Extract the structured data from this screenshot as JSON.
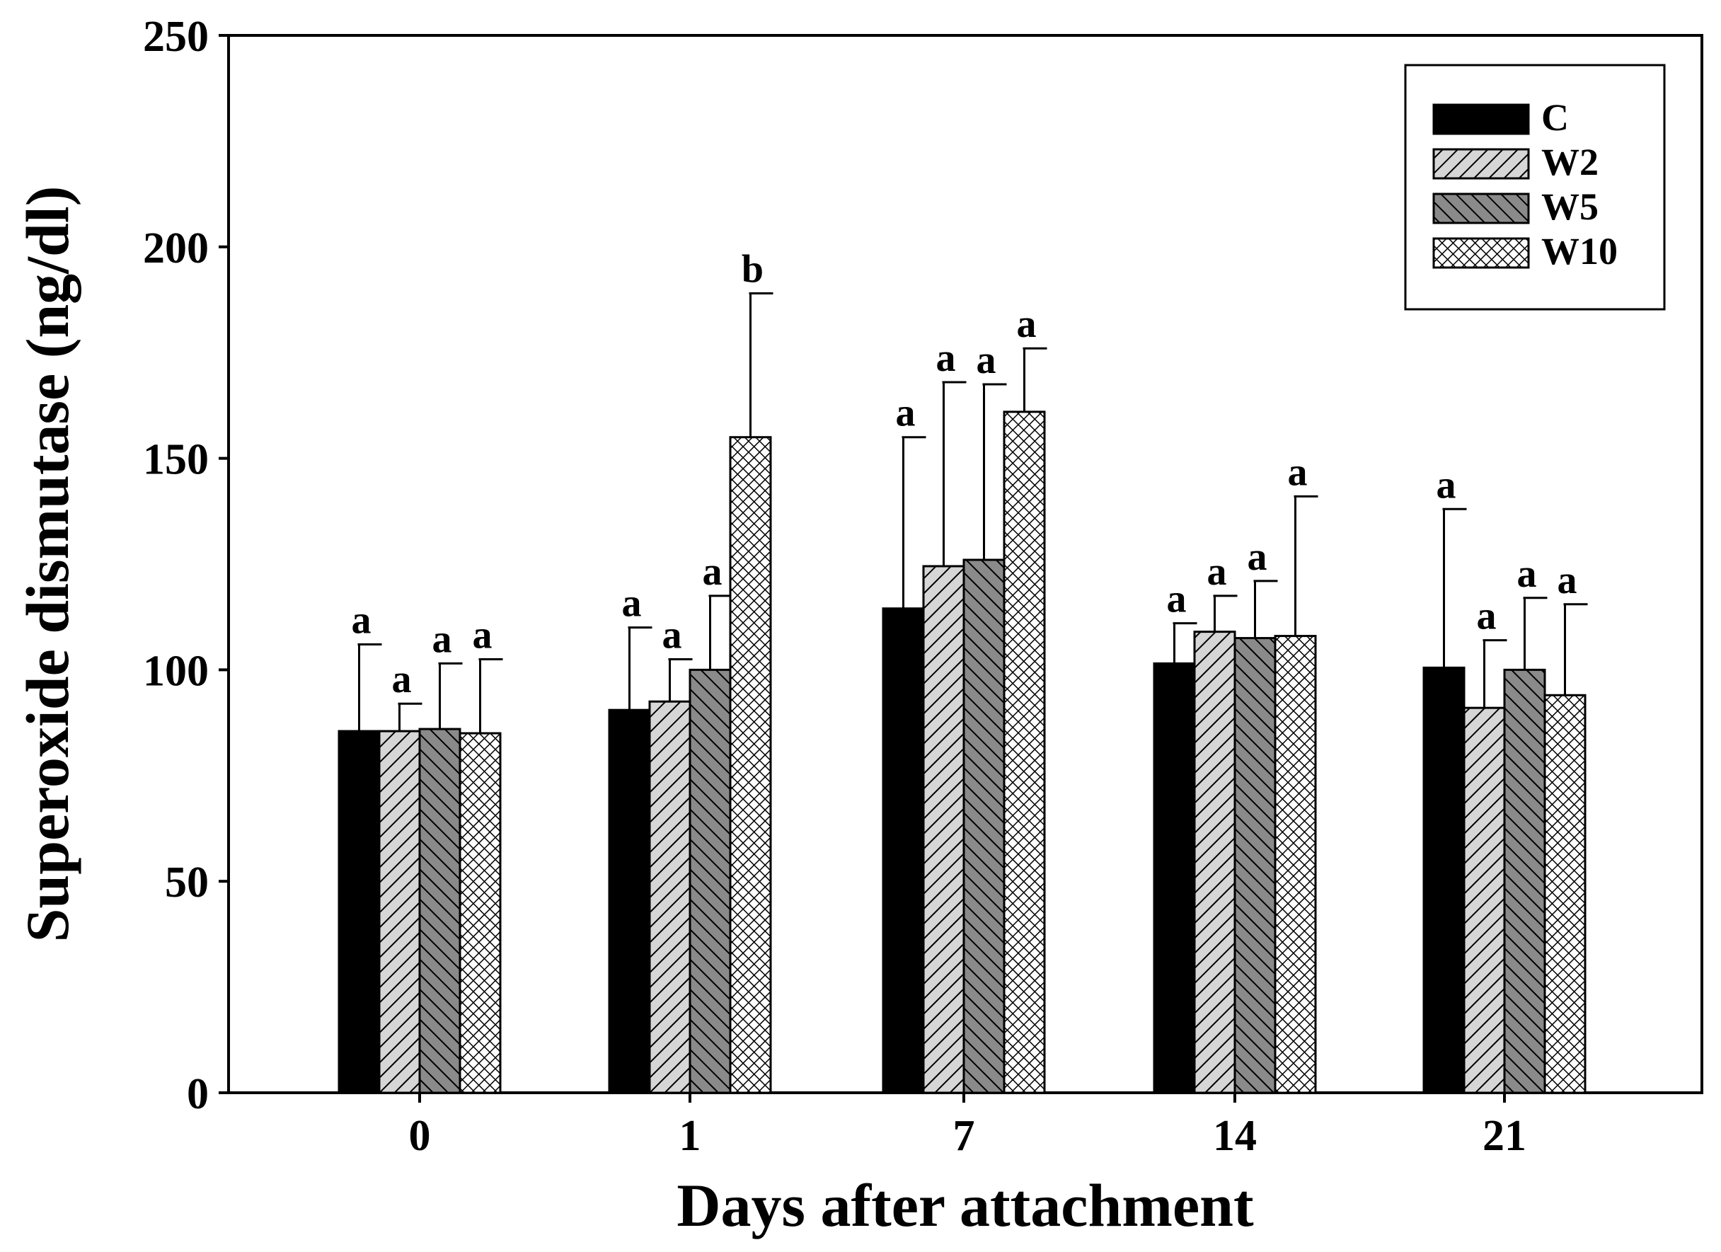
{
  "chart_data": {
    "type": "bar",
    "title": "",
    "xlabel": "Days after attachment",
    "ylabel": "Superoxide dismutase (ng/dl)",
    "ylim": [
      0,
      250
    ],
    "yticks": [
      0,
      50,
      100,
      150,
      200,
      250
    ],
    "ytick_labels": [
      "0",
      "50",
      "100",
      "150",
      "200",
      "250"
    ],
    "categories": [
      "0",
      "1",
      "7",
      "14",
      "21"
    ],
    "legend_position": "top-right",
    "series": [
      {
        "name": "C",
        "pattern": "solid",
        "values": [
          85.5,
          90.5,
          114.5,
          101.5,
          100.5
        ],
        "errors": [
          20.5,
          19.5,
          40.5,
          9.5,
          37.5
        ],
        "letters": [
          "a",
          "a",
          "a",
          "a",
          "a"
        ]
      },
      {
        "name": "W2",
        "pattern": "hatch-right",
        "values": [
          85.5,
          92.5,
          124.5,
          109,
          91
        ],
        "errors": [
          6.5,
          10,
          43.5,
          8.5,
          16
        ],
        "letters": [
          "a",
          "a",
          "a",
          "a",
          "a"
        ]
      },
      {
        "name": "W5",
        "pattern": "hatch-left",
        "values": [
          86,
          100,
          126,
          107.5,
          100
        ],
        "errors": [
          15.5,
          17.5,
          41.5,
          13.5,
          17
        ],
        "letters": [
          "a",
          "a",
          "a",
          "a",
          "a"
        ]
      },
      {
        "name": "W10",
        "pattern": "crosshatch",
        "values": [
          85,
          155,
          161,
          108,
          94
        ],
        "errors": [
          17.5,
          34,
          15,
          33,
          21.5
        ],
        "letters": [
          "a",
          "b",
          "a",
          "a",
          "a"
        ]
      }
    ]
  },
  "colors": {
    "bar_solid": "#000000",
    "hatch_light_bg": "#d6d6d6",
    "hatch_dark_bg": "#8a8a8a",
    "crosshatch_bg": "#ffffff",
    "axis": "#000000"
  }
}
